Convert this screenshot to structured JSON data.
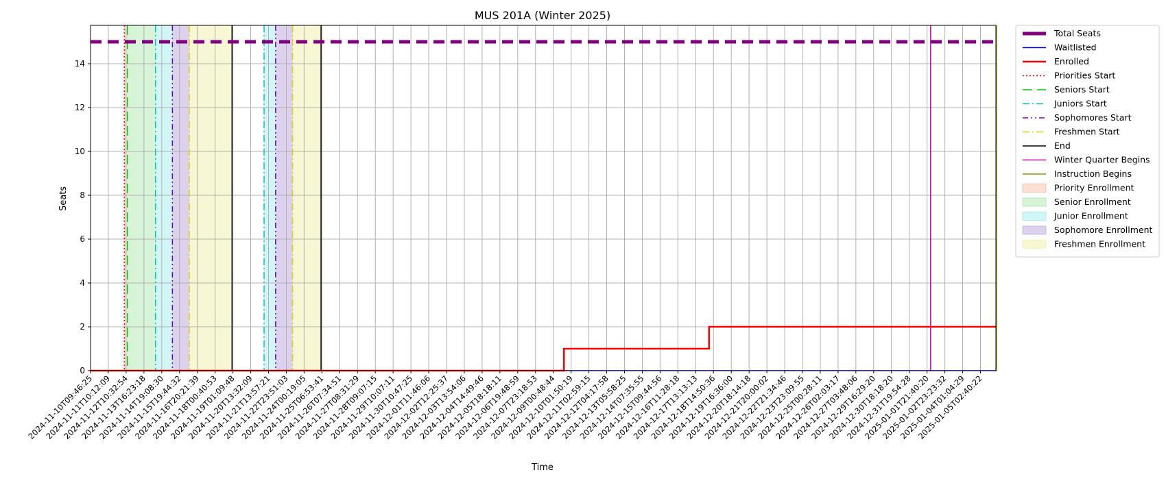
{
  "chart_data": {
    "type": "line",
    "title": "MUS 201A (Winter 2025)",
    "xlabel": "Time",
    "ylabel": "Seats",
    "ylim": [
      0,
      15.75
    ],
    "yticks": [
      0,
      2,
      4,
      6,
      8,
      10,
      12,
      14
    ],
    "grid": true,
    "legend_position": "outside-right",
    "x_ticks": [
      "2024-11-10T09:46:25",
      "2024-11-11T10:12:09",
      "2024-11-12T10:32:54",
      "2024-11-13T16:23:18",
      "2024-11-14T19:08:30",
      "2024-11-15T19:44:32",
      "2024-11-16T20:21:39",
      "2024-11-18T00:40:53",
      "2024-11-19T01:09:48",
      "2024-11-20T13:32:09",
      "2024-11-21T13:57:21",
      "2024-11-22T23:51:03",
      "2024-11-24T00:19:05",
      "2024-11-25T06:53:41",
      "2024-11-26T07:34:51",
      "2024-11-27T08:31:29",
      "2024-11-28T09:07:15",
      "2024-11-29T10:07:11",
      "2024-11-30T10:47:25",
      "2024-12-01T11:46:06",
      "2024-12-02T12:25:37",
      "2024-12-03T13:54:06",
      "2024-12-04T14:49:46",
      "2024-12-05T18:18:11",
      "2024-12-06T19:48:59",
      "2024-12-07T23:18:53",
      "2024-12-09T00:48:44",
      "2024-12-10T01:50:19",
      "2024-12-11T02:59:15",
      "2024-12-12T04:17:58",
      "2024-12-13T05:58:25",
      "2024-12-14T07:35:55",
      "2024-12-15T09:44:56",
      "2024-12-16T11:28:18",
      "2024-12-17T13:13:13",
      "2024-12-18T14:50:36",
      "2024-12-19T16:36:00",
      "2024-12-20T18:14:18",
      "2024-12-21T20:00:02",
      "2024-12-22T21:34:46",
      "2024-12-23T23:09:55",
      "2024-12-25T00:28:11",
      "2024-12-26T02:03:17",
      "2024-12-27T03:48:06",
      "2024-12-29T16:29:20",
      "2024-12-30T18:18:20",
      "2024-12-31T19:54:28",
      "2025-01-01T21:40:20",
      "2025-01-02T23:23:32",
      "2025-01-04T01:04:29",
      "2025-01-05T02:40:22"
    ],
    "series": [
      {
        "name": "Total Seats",
        "style": "dashed",
        "color": "#800080",
        "x_index": [
          0,
          50.9
        ],
        "values": [
          15,
          15
        ]
      },
      {
        "name": "Waitlisted",
        "style": "solid",
        "color": "#0000ff",
        "x_index": [
          0,
          50.9
        ],
        "values": [
          0,
          0
        ]
      },
      {
        "name": "Enrolled",
        "style": "solid",
        "color": "#ff0000",
        "x_index": [
          0,
          26.6,
          26.6,
          34.75,
          34.75,
          50.9
        ],
        "values": [
          0,
          0,
          1,
          1,
          2,
          2
        ]
      }
    ],
    "vertical_lines": [
      {
        "name": "Priorities Start",
        "style": "dotted",
        "color": "#ff0000",
        "x_index": [
          1.9
        ]
      },
      {
        "name": "Seniors Start",
        "style": "dashed",
        "color": "#00cc00",
        "x_index": [
          2.07
        ]
      },
      {
        "name": "Juniors Start",
        "style": "dashdot",
        "color": "#00bfbf",
        "x_index": [
          3.65,
          9.75
        ]
      },
      {
        "name": "Sophomores Start",
        "style": "dashdotdot",
        "color": "#6600cc",
        "x_index": [
          4.6,
          10.4
        ]
      },
      {
        "name": "Freshmen Start",
        "style": "dashdot",
        "color": "#e6c800",
        "x_index": [
          5.55,
          11.35
        ]
      },
      {
        "name": "End",
        "style": "solid",
        "color": "#000000",
        "x_index": [
          7.95,
          12.95
        ]
      },
      {
        "name": "Winter Quarter Begins",
        "style": "solid",
        "color": "#cc00aa",
        "x_index": [
          47.2
        ]
      },
      {
        "name": "Instruction Begins",
        "style": "solid",
        "color": "#7f9f00",
        "x_index": [
          50.9
        ]
      }
    ],
    "shaded_regions": [
      {
        "name": "Priority Enrollment",
        "color": "#f4a582",
        "alpha": 0.35,
        "spans": [
          [
            1.9,
            2.07
          ]
        ]
      },
      {
        "name": "Senior Enrollment",
        "color": "#90e090",
        "alpha": 0.35,
        "spans": [
          [
            2.07,
            3.65
          ]
        ]
      },
      {
        "name": "Junior Enrollment",
        "color": "#7fe5e5",
        "alpha": 0.35,
        "spans": [
          [
            3.65,
            4.6
          ],
          [
            9.75,
            10.4
          ]
        ]
      },
      {
        "name": "Sophomore Enrollment",
        "color": "#b19cd9",
        "alpha": 0.45,
        "spans": [
          [
            4.6,
            5.55
          ],
          [
            10.4,
            11.35
          ]
        ]
      },
      {
        "name": "Freshmen Enrollment",
        "color": "#eeee9e",
        "alpha": 0.45,
        "spans": [
          [
            5.55,
            7.95
          ],
          [
            11.35,
            12.95
          ]
        ]
      }
    ]
  }
}
